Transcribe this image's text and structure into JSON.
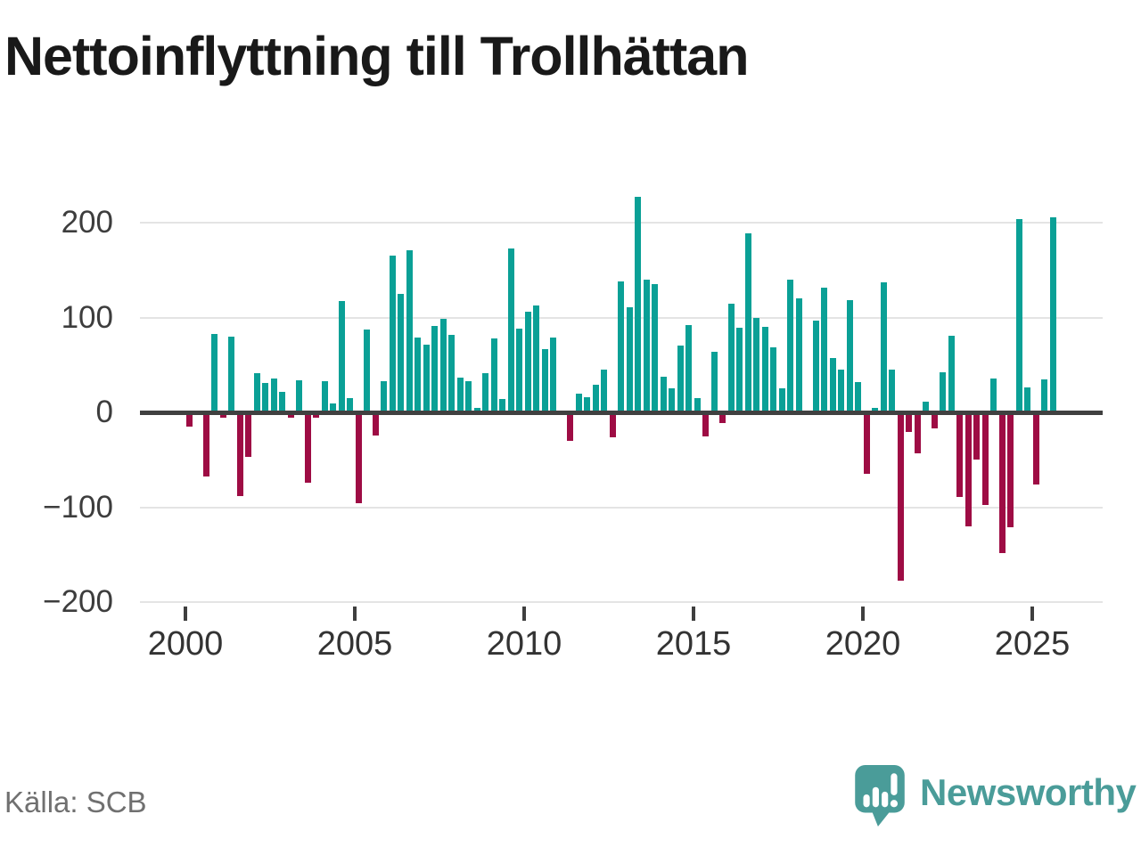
{
  "title": "Nettoinflyttning till Trollhättan",
  "source": "Källa: SCB",
  "branding": {
    "name": "Newsworthy",
    "logo_icon": "speech-bubble-bar-chart-icon",
    "color": "#4a9c99"
  },
  "colors": {
    "positive_bar": "#0aa096",
    "negative_bar": "#9e0c44",
    "gridline": "#e4e4e4",
    "zero_line": "#404040",
    "axis_text": "#3d3d3d",
    "title_text": "#191919",
    "source_text": "#707070"
  },
  "chart_data": {
    "type": "bar",
    "title": "Nettoinflyttning till Trollhättan",
    "xlabel": "",
    "ylabel": "",
    "frequency": "quarterly",
    "start": "2000-Q1",
    "end": "2025-Q3",
    "grid": "horizontal",
    "legend_position": "none",
    "ylim": [
      -210,
      240
    ],
    "y_ticks": [
      200,
      100,
      0,
      -100,
      -200
    ],
    "y_tick_labels": [
      "200",
      "100",
      "0",
      "−100",
      "−200"
    ],
    "x_tick_labels": [
      "2000",
      "2005",
      "2010",
      "2015",
      "2020",
      "2025"
    ],
    "values": [
      -15,
      0,
      -68,
      83,
      -6,
      80,
      -88,
      -47,
      41,
      31,
      36,
      22,
      -6,
      34,
      -74,
      -6,
      33,
      9,
      117,
      15,
      -96,
      87,
      -24,
      33,
      165,
      125,
      171,
      79,
      71,
      91,
      99,
      82,
      37,
      33,
      5,
      41,
      78,
      14,
      173,
      88,
      106,
      113,
      67,
      79,
      0,
      -30,
      20,
      16,
      29,
      45,
      -26,
      138,
      111,
      227,
      140,
      135,
      38,
      25,
      70,
      92,
      15,
      -25,
      64,
      -11,
      115,
      89,
      189,
      100,
      90,
      69,
      25,
      140,
      120,
      0,
      97,
      131,
      57,
      45,
      118,
      32,
      -65,
      5,
      137,
      45,
      -177,
      -21,
      -43,
      11,
      -17,
      42,
      81,
      -89,
      -120,
      -50,
      -98,
      36,
      -148,
      -121,
      204,
      26,
      -76,
      35,
      206
    ]
  }
}
